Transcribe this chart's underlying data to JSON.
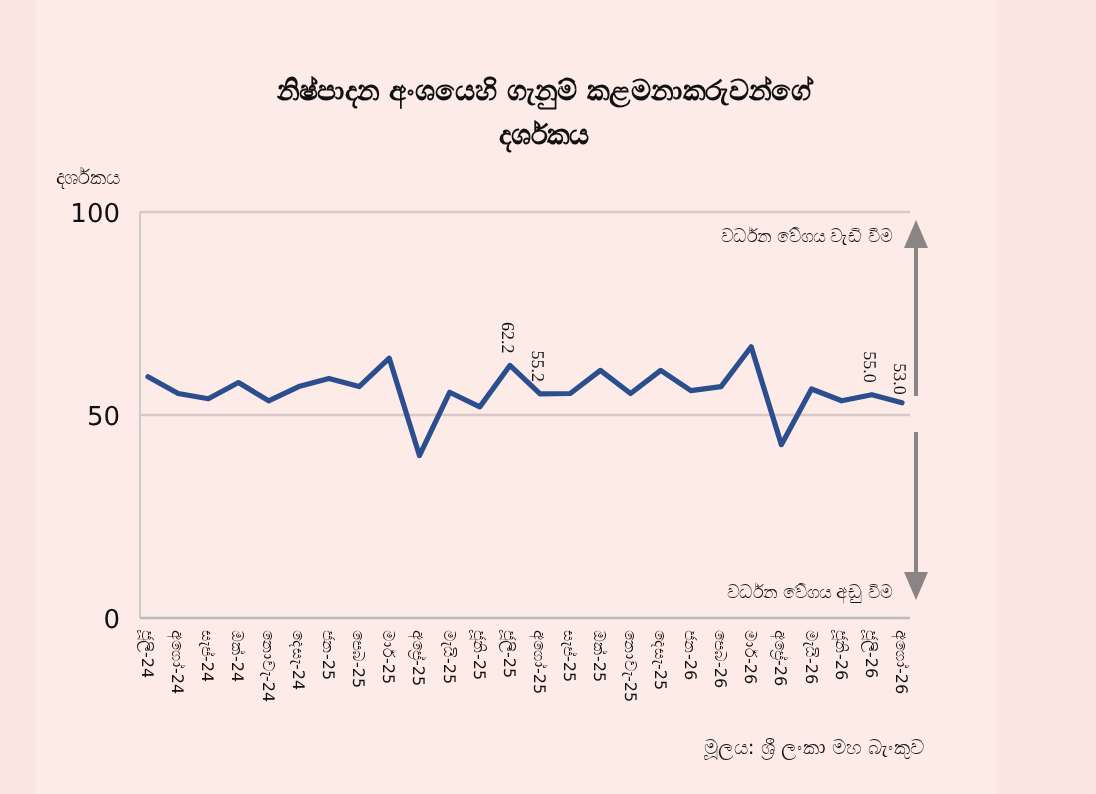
{
  "chart_data": {
    "type": "line",
    "title": "නිෂ්පාදන අංශයෙහි ගැනුම් කළමනාකරුවන්ගේ දර්ශකය",
    "ylabel": "දර්ශකය",
    "categories": [
      "ජූලි-24",
      "අගෝ-24",
      "සැප්-24",
      "ඔක්-24",
      "නොවැ-24",
      "දෙසැ-24",
      "ජන-25",
      "පෙබ-25",
      "මාර්-25",
      "අප්‍රේ-25",
      "මැයි-25",
      "ජූනි-25",
      "ජූලි-25",
      "අගෝ-25",
      "සැප්-25",
      "ඔක්-25",
      "නොවැ-25",
      "දෙසැ-25",
      "ජන-26",
      "පෙබ-26",
      "මාර්-26",
      "අප්‍රේ-26",
      "මැයි-26",
      "ජූනි-26",
      "ජූලි-26",
      "අගෝ-26"
    ],
    "color": "#2b4f8e",
    "values": [
      59.4,
      55.3,
      54,
      58,
      53.5,
      57,
      59,
      57,
      64,
      40,
      55.6,
      52,
      62.2,
      55.2,
      55.3,
      61,
      55.3,
      61,
      56,
      57,
      66.8,
      42.7,
      56.4,
      53.5,
      55.0,
      53.0
    ],
    "value_labels": [
      null,
      null,
      null,
      null,
      null,
      null,
      null,
      null,
      null,
      null,
      null,
      null,
      "62.2",
      "55.2",
      null,
      null,
      null,
      null,
      null,
      null,
      null,
      null,
      null,
      null,
      "55.0",
      "53.0"
    ],
    "ylim": [
      0,
      100
    ],
    "yticks": [
      0,
      50,
      100
    ],
    "ref_lines": [
      {
        "axis": "y",
        "value": 50,
        "color": "#d8c8c6"
      }
    ],
    "annotations": [
      "වර්ධන වේගය වැඩි වීම",
      "වර්ධන වේගය අඩු වීම",
      "මූලය: ශ්‍රී ලංකා මහ බැංකුව"
    ]
  }
}
